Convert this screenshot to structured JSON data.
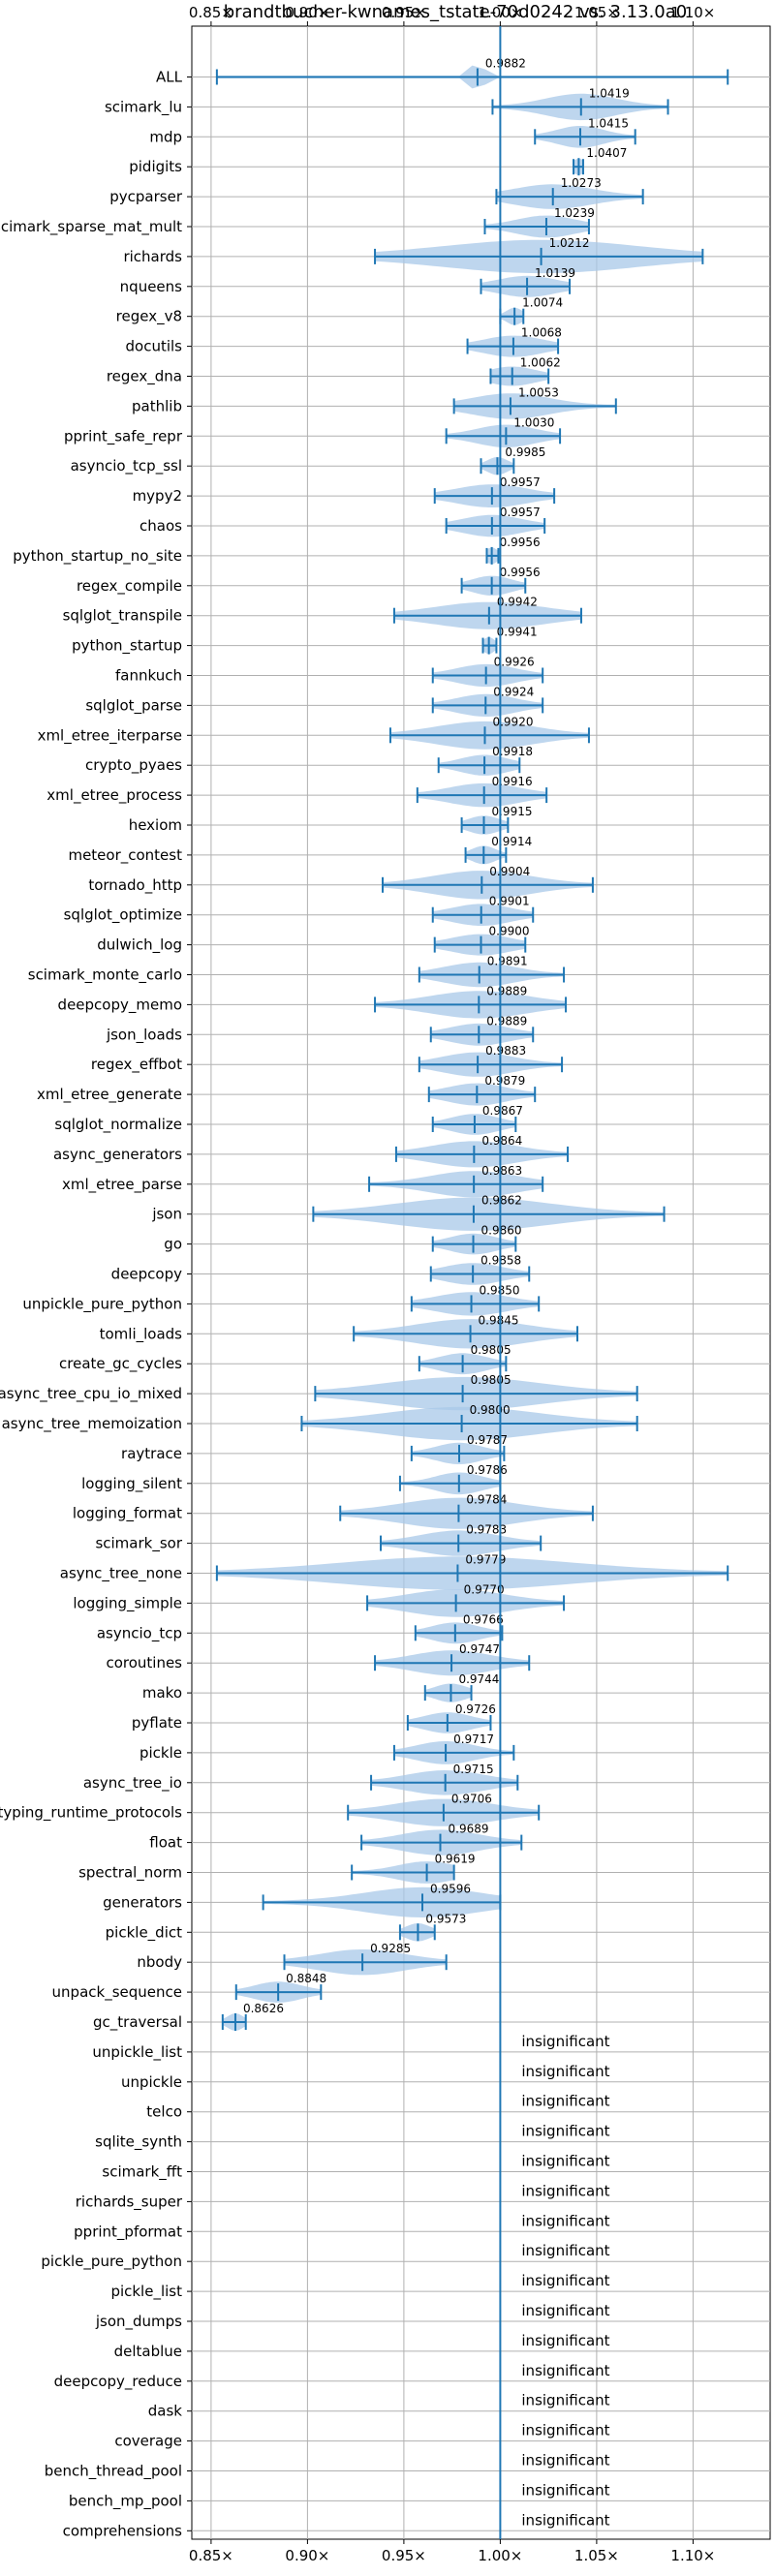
{
  "chart_data": {
    "type": "violin",
    "title": "brandtbucher-kwnames_tstate-70d0242 vs. 3.13.0a0",
    "xlim": [
      0.84,
      1.14
    ],
    "x_ticks": [
      0.85,
      0.9,
      0.95,
      1.0,
      1.05,
      1.1
    ],
    "x_tick_labels": [
      "0.85×",
      "0.90×",
      "0.95×",
      "1.00×",
      "1.05×",
      "1.10×"
    ],
    "grid": true,
    "reference_line": 1.0,
    "colors": {
      "body": "#a8c8e8",
      "line": "#1f77b4",
      "grid": "#b0b0b0"
    },
    "benchmarks": [
      {
        "name": "ALL",
        "label": "0.9882",
        "median": 0.9882,
        "min": 0.853,
        "max": 1.118,
        "spread": 0.003
      },
      {
        "name": "scimark_lu",
        "label": "1.0419",
        "median": 1.0419,
        "min": 0.996,
        "max": 1.087,
        "spread": 0.018
      },
      {
        "name": "mdp",
        "label": "1.0415",
        "median": 1.0415,
        "min": 1.018,
        "max": 1.07,
        "spread": 0.012
      },
      {
        "name": "pidigits",
        "label": "1.0407",
        "median": 1.0407,
        "min": 1.038,
        "max": 1.043,
        "spread": 0.003
      },
      {
        "name": "pycparser",
        "label": "1.0273",
        "median": 1.0273,
        "min": 0.998,
        "max": 1.074,
        "spread": 0.02
      },
      {
        "name": "scimark_sparse_mat_mult",
        "label": "1.0239",
        "median": 1.0239,
        "min": 0.992,
        "max": 1.046,
        "spread": 0.015
      },
      {
        "name": "richards",
        "label": "1.0212",
        "median": 1.0212,
        "min": 0.935,
        "max": 1.105,
        "spread": 0.05
      },
      {
        "name": "nqueens",
        "label": "1.0139",
        "median": 1.0139,
        "min": 0.99,
        "max": 1.036,
        "spread": 0.015
      },
      {
        "name": "regex_v8",
        "label": "1.0074",
        "median": 1.0074,
        "min": 1.0,
        "max": 1.012,
        "spread": 0.004
      },
      {
        "name": "docutils",
        "label": "1.0068",
        "median": 1.0068,
        "min": 0.983,
        "max": 1.03,
        "spread": 0.015
      },
      {
        "name": "regex_dna",
        "label": "1.0062",
        "median": 1.0062,
        "min": 0.995,
        "max": 1.025,
        "spread": 0.012
      },
      {
        "name": "pathlib",
        "label": "1.0053",
        "median": 1.0053,
        "min": 0.976,
        "max": 1.06,
        "spread": 0.02
      },
      {
        "name": "pprint_safe_repr",
        "label": "1.0030",
        "median": 1.003,
        "min": 0.972,
        "max": 1.031,
        "spread": 0.015
      },
      {
        "name": "asyncio_tcp_ssl",
        "label": "0.9985",
        "median": 0.9985,
        "min": 0.99,
        "max": 1.007,
        "spread": 0.005
      },
      {
        "name": "mypy2",
        "label": "0.9957",
        "median": 0.9957,
        "min": 0.966,
        "max": 1.028,
        "spread": 0.018
      },
      {
        "name": "chaos",
        "label": "0.9957",
        "median": 0.9957,
        "min": 0.972,
        "max": 1.023,
        "spread": 0.015
      },
      {
        "name": "python_startup_no_site",
        "label": "0.9956",
        "median": 0.9956,
        "min": 0.993,
        "max": 0.999,
        "spread": 0.003
      },
      {
        "name": "regex_compile",
        "label": "0.9956",
        "median": 0.9956,
        "min": 0.98,
        "max": 1.013,
        "spread": 0.01
      },
      {
        "name": "sqlglot_transpile",
        "label": "0.9942",
        "median": 0.9942,
        "min": 0.945,
        "max": 1.042,
        "spread": 0.028
      },
      {
        "name": "python_startup",
        "label": "0.9941",
        "median": 0.9941,
        "min": 0.991,
        "max": 0.998,
        "spread": 0.003
      },
      {
        "name": "fannkuch",
        "label": "0.9926",
        "median": 0.9926,
        "min": 0.965,
        "max": 1.022,
        "spread": 0.015
      },
      {
        "name": "sqlglot_parse",
        "label": "0.9924",
        "median": 0.9924,
        "min": 0.965,
        "max": 1.022,
        "spread": 0.015
      },
      {
        "name": "xml_etree_iterparse",
        "label": "0.9920",
        "median": 0.992,
        "min": 0.943,
        "max": 1.046,
        "spread": 0.025
      },
      {
        "name": "crypto_pyaes",
        "label": "0.9918",
        "median": 0.9918,
        "min": 0.968,
        "max": 1.01,
        "spread": 0.012
      },
      {
        "name": "xml_etree_process",
        "label": "0.9916",
        "median": 0.9916,
        "min": 0.957,
        "max": 1.024,
        "spread": 0.018
      },
      {
        "name": "hexiom",
        "label": "0.9915",
        "median": 0.9915,
        "min": 0.98,
        "max": 1.004,
        "spread": 0.008
      },
      {
        "name": "meteor_contest",
        "label": "0.9914",
        "median": 0.9914,
        "min": 0.982,
        "max": 1.003,
        "spread": 0.006
      },
      {
        "name": "tornado_http",
        "label": "0.9904",
        "median": 0.9904,
        "min": 0.939,
        "max": 1.048,
        "spread": 0.025
      },
      {
        "name": "sqlglot_optimize",
        "label": "0.9901",
        "median": 0.9901,
        "min": 0.965,
        "max": 1.017,
        "spread": 0.015
      },
      {
        "name": "dulwich_log",
        "label": "0.9900",
        "median": 0.99,
        "min": 0.966,
        "max": 1.013,
        "spread": 0.015
      },
      {
        "name": "scimark_monte_carlo",
        "label": "0.9891",
        "median": 0.9891,
        "min": 0.958,
        "max": 1.033,
        "spread": 0.018
      },
      {
        "name": "deepcopy_memo",
        "label": "0.9889",
        "median": 0.9889,
        "min": 0.935,
        "max": 1.034,
        "spread": 0.025
      },
      {
        "name": "json_loads",
        "label": "0.9889",
        "median": 0.9889,
        "min": 0.964,
        "max": 1.017,
        "spread": 0.015
      },
      {
        "name": "regex_effbot",
        "label": "0.9883",
        "median": 0.9883,
        "min": 0.958,
        "max": 1.032,
        "spread": 0.018
      },
      {
        "name": "xml_etree_generate",
        "label": "0.9879",
        "median": 0.9879,
        "min": 0.963,
        "max": 1.018,
        "spread": 0.015
      },
      {
        "name": "sqlglot_normalize",
        "label": "0.9867",
        "median": 0.9867,
        "min": 0.965,
        "max": 1.008,
        "spread": 0.012
      },
      {
        "name": "async_generators",
        "label": "0.9864",
        "median": 0.9864,
        "min": 0.946,
        "max": 1.035,
        "spread": 0.022
      },
      {
        "name": "xml_etree_parse",
        "label": "0.9863",
        "median": 0.9863,
        "min": 0.932,
        "max": 1.022,
        "spread": 0.022
      },
      {
        "name": "json",
        "label": "0.9862",
        "median": 0.9862,
        "min": 0.903,
        "max": 1.085,
        "spread": 0.04
      },
      {
        "name": "go",
        "label": "0.9860",
        "median": 0.986,
        "min": 0.965,
        "max": 1.008,
        "spread": 0.012
      },
      {
        "name": "deepcopy",
        "label": "0.9858",
        "median": 0.9858,
        "min": 0.964,
        "max": 1.015,
        "spread": 0.015
      },
      {
        "name": "unpickle_pure_python",
        "label": "0.9850",
        "median": 0.985,
        "min": 0.954,
        "max": 1.02,
        "spread": 0.018
      },
      {
        "name": "tomli_loads",
        "label": "0.9845",
        "median": 0.9845,
        "min": 0.924,
        "max": 1.04,
        "spread": 0.028
      },
      {
        "name": "create_gc_cycles",
        "label": "0.9805",
        "median": 0.9805,
        "min": 0.958,
        "max": 1.003,
        "spread": 0.012
      },
      {
        "name": "async_tree_cpu_io_mixed",
        "label": "0.9805",
        "median": 0.9805,
        "min": 0.904,
        "max": 1.071,
        "spread": 0.04
      },
      {
        "name": "async_tree_memoization",
        "label": "0.9800",
        "median": 0.98,
        "min": 0.897,
        "max": 1.071,
        "spread": 0.04
      },
      {
        "name": "raytrace",
        "label": "0.9787",
        "median": 0.9787,
        "min": 0.954,
        "max": 1.002,
        "spread": 0.012
      },
      {
        "name": "logging_silent",
        "label": "0.9786",
        "median": 0.9786,
        "min": 0.948,
        "max": 1.0,
        "spread": 0.012
      },
      {
        "name": "logging_format",
        "label": "0.9784",
        "median": 0.9784,
        "min": 0.917,
        "max": 1.048,
        "spread": 0.03
      },
      {
        "name": "scimark_sor",
        "label": "0.9783",
        "median": 0.9783,
        "min": 0.938,
        "max": 1.021,
        "spread": 0.02
      },
      {
        "name": "async_tree_none",
        "label": "0.9779",
        "median": 0.9779,
        "min": 0.853,
        "max": 1.118,
        "spread": 0.06
      },
      {
        "name": "logging_simple",
        "label": "0.9770",
        "median": 0.977,
        "min": 0.931,
        "max": 1.033,
        "spread": 0.025
      },
      {
        "name": "asyncio_tcp",
        "label": "0.9766",
        "median": 0.9766,
        "min": 0.956,
        "max": 1.001,
        "spread": 0.012
      },
      {
        "name": "coroutines",
        "label": "0.9747",
        "median": 0.9747,
        "min": 0.935,
        "max": 1.015,
        "spread": 0.02
      },
      {
        "name": "mako",
        "label": "0.9744",
        "median": 0.9744,
        "min": 0.961,
        "max": 0.985,
        "spread": 0.008
      },
      {
        "name": "pyflate",
        "label": "0.9726",
        "median": 0.9726,
        "min": 0.952,
        "max": 0.995,
        "spread": 0.012
      },
      {
        "name": "pickle",
        "label": "0.9717",
        "median": 0.9717,
        "min": 0.945,
        "max": 1.007,
        "spread": 0.015
      },
      {
        "name": "async_tree_io",
        "label": "0.9715",
        "median": 0.9715,
        "min": 0.933,
        "max": 1.009,
        "spread": 0.02
      },
      {
        "name": "typing_runtime_protocols",
        "label": "0.9706",
        "median": 0.9706,
        "min": 0.921,
        "max": 1.02,
        "spread": 0.025
      },
      {
        "name": "float",
        "label": "0.9689",
        "median": 0.9689,
        "min": 0.928,
        "max": 1.011,
        "spread": 0.02
      },
      {
        "name": "spectral_norm",
        "label": "0.9619",
        "median": 0.9619,
        "min": 0.923,
        "max": 0.976,
        "spread": 0.015
      },
      {
        "name": "generators",
        "label": "0.9596",
        "median": 0.9596,
        "min": 0.877,
        "max": 1.0,
        "spread": 0.03
      },
      {
        "name": "pickle_dict",
        "label": "0.9573",
        "median": 0.9573,
        "min": 0.948,
        "max": 0.966,
        "spread": 0.006
      },
      {
        "name": "nbody",
        "label": "0.9285",
        "median": 0.9285,
        "min": 0.888,
        "max": 0.972,
        "spread": 0.022
      },
      {
        "name": "unpack_sequence",
        "label": "0.8848",
        "median": 0.8848,
        "min": 0.863,
        "max": 0.907,
        "spread": 0.012
      },
      {
        "name": "gc_traversal",
        "label": "0.8626",
        "median": 0.8626,
        "min": 0.856,
        "max": 0.868,
        "spread": 0.004
      },
      {
        "name": "unpickle_list",
        "label": "insignificant"
      },
      {
        "name": "unpickle",
        "label": "insignificant"
      },
      {
        "name": "telco",
        "label": "insignificant"
      },
      {
        "name": "sqlite_synth",
        "label": "insignificant"
      },
      {
        "name": "scimark_fft",
        "label": "insignificant"
      },
      {
        "name": "richards_super",
        "label": "insignificant"
      },
      {
        "name": "pprint_pformat",
        "label": "insignificant"
      },
      {
        "name": "pickle_pure_python",
        "label": "insignificant"
      },
      {
        "name": "pickle_list",
        "label": "insignificant"
      },
      {
        "name": "json_dumps",
        "label": "insignificant"
      },
      {
        "name": "deltablue",
        "label": "insignificant"
      },
      {
        "name": "deepcopy_reduce",
        "label": "insignificant"
      },
      {
        "name": "dask",
        "label": "insignificant"
      },
      {
        "name": "coverage",
        "label": "insignificant"
      },
      {
        "name": "bench_thread_pool",
        "label": "insignificant"
      },
      {
        "name": "bench_mp_pool",
        "label": "insignificant"
      },
      {
        "name": "comprehensions",
        "label": "insignificant"
      }
    ]
  }
}
